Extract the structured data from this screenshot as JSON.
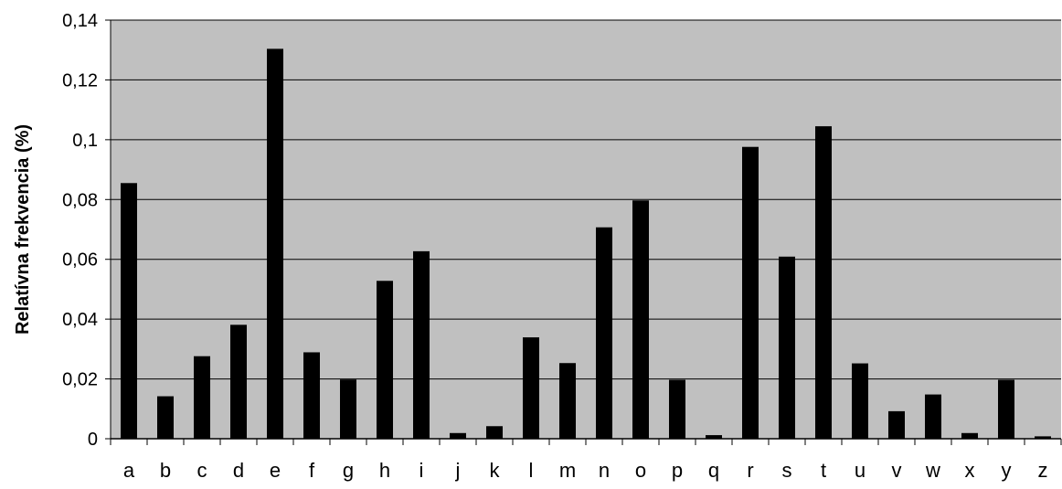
{
  "chart_data": {
    "type": "bar",
    "title": "",
    "xlabel": "",
    "ylabel": "Relatívna frekvencia (%)",
    "categories": [
      "a",
      "b",
      "c",
      "d",
      "e",
      "f",
      "g",
      "h",
      "i",
      "j",
      "k",
      "l",
      "m",
      "n",
      "o",
      "p",
      "q",
      "r",
      "s",
      "t",
      "u",
      "v",
      "w",
      "x",
      "y",
      "z"
    ],
    "values": [
      0.0855,
      0.0142,
      0.0276,
      0.0381,
      0.1304,
      0.0289,
      0.0198,
      0.0528,
      0.0627,
      0.0019,
      0.0042,
      0.0339,
      0.0253,
      0.0707,
      0.0797,
      0.0197,
      0.0012,
      0.0976,
      0.0609,
      0.1045,
      0.0252,
      0.0092,
      0.0148,
      0.0019,
      0.0197,
      0.0008
    ],
    "ylim": [
      0,
      0.14
    ],
    "yticks": [
      0,
      0.02,
      0.04,
      0.06,
      0.08,
      0.1,
      0.12,
      0.14
    ],
    "ytick_labels": [
      "0",
      "0,02",
      "0,04",
      "0,06",
      "0,08",
      "0,1",
      "0,12",
      "0,14"
    ],
    "grid": true,
    "legend": "none",
    "colors": {
      "plot_background": "#c0c0c0",
      "bar": "#000000",
      "grid": "#000000",
      "axis": "#000000",
      "text": "#000000"
    }
  }
}
